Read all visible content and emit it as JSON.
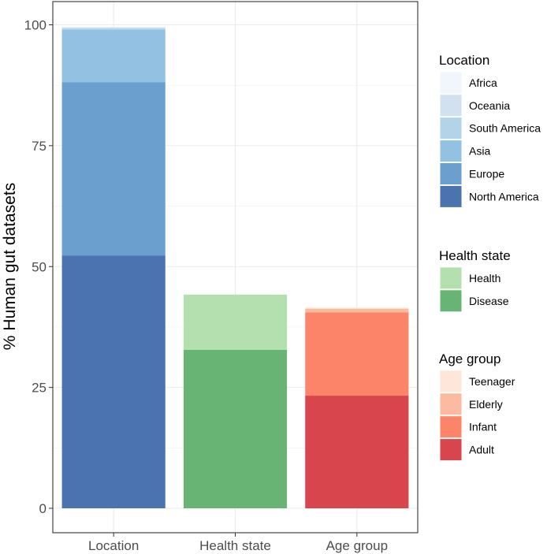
{
  "chart_data": {
    "type": "bar",
    "stacked": true,
    "title": "",
    "xlabel": "",
    "ylabel": "% Human gut datasets",
    "ylim": [
      0,
      102
    ],
    "yticks": [
      0,
      25,
      50,
      75,
      100
    ],
    "grid": true,
    "legend_position": "right",
    "categories": [
      "Location",
      "Health state",
      "Age group"
    ],
    "groups": [
      {
        "category": "Location",
        "legend_title": "Location",
        "segments": [
          {
            "name": "North America",
            "value": 52.3,
            "color": "#4A73B0"
          },
          {
            "name": "Europe",
            "value": 35.8,
            "color": "#6A9FCE"
          },
          {
            "name": "Asia",
            "value": 10.9,
            "color": "#93C1E1"
          },
          {
            "name": "South America",
            "value": 0.3,
            "color": "#B2D3E8"
          },
          {
            "name": "Oceania",
            "value": 0.2,
            "color": "#D1E1F0"
          },
          {
            "name": "Africa",
            "value": 0.1,
            "color": "#F1F6FC"
          }
        ]
      },
      {
        "category": "Health state",
        "legend_title": "Health state",
        "segments": [
          {
            "name": "Disease",
            "value": 32.8,
            "color": "#67B474"
          },
          {
            "name": "Health",
            "value": 11.4,
            "color": "#B4E0B0"
          }
        ]
      },
      {
        "category": "Age group",
        "legend_title": "Age group",
        "segments": [
          {
            "name": "Adult",
            "value": 23.3,
            "color": "#D9454C"
          },
          {
            "name": "Infant",
            "value": 17.2,
            "color": "#FC8469"
          },
          {
            "name": "Elderly",
            "value": 0.8,
            "color": "#FCBBA0"
          },
          {
            "name": "Teenager",
            "value": 0.2,
            "color": "#FEE6D9"
          }
        ]
      }
    ]
  }
}
